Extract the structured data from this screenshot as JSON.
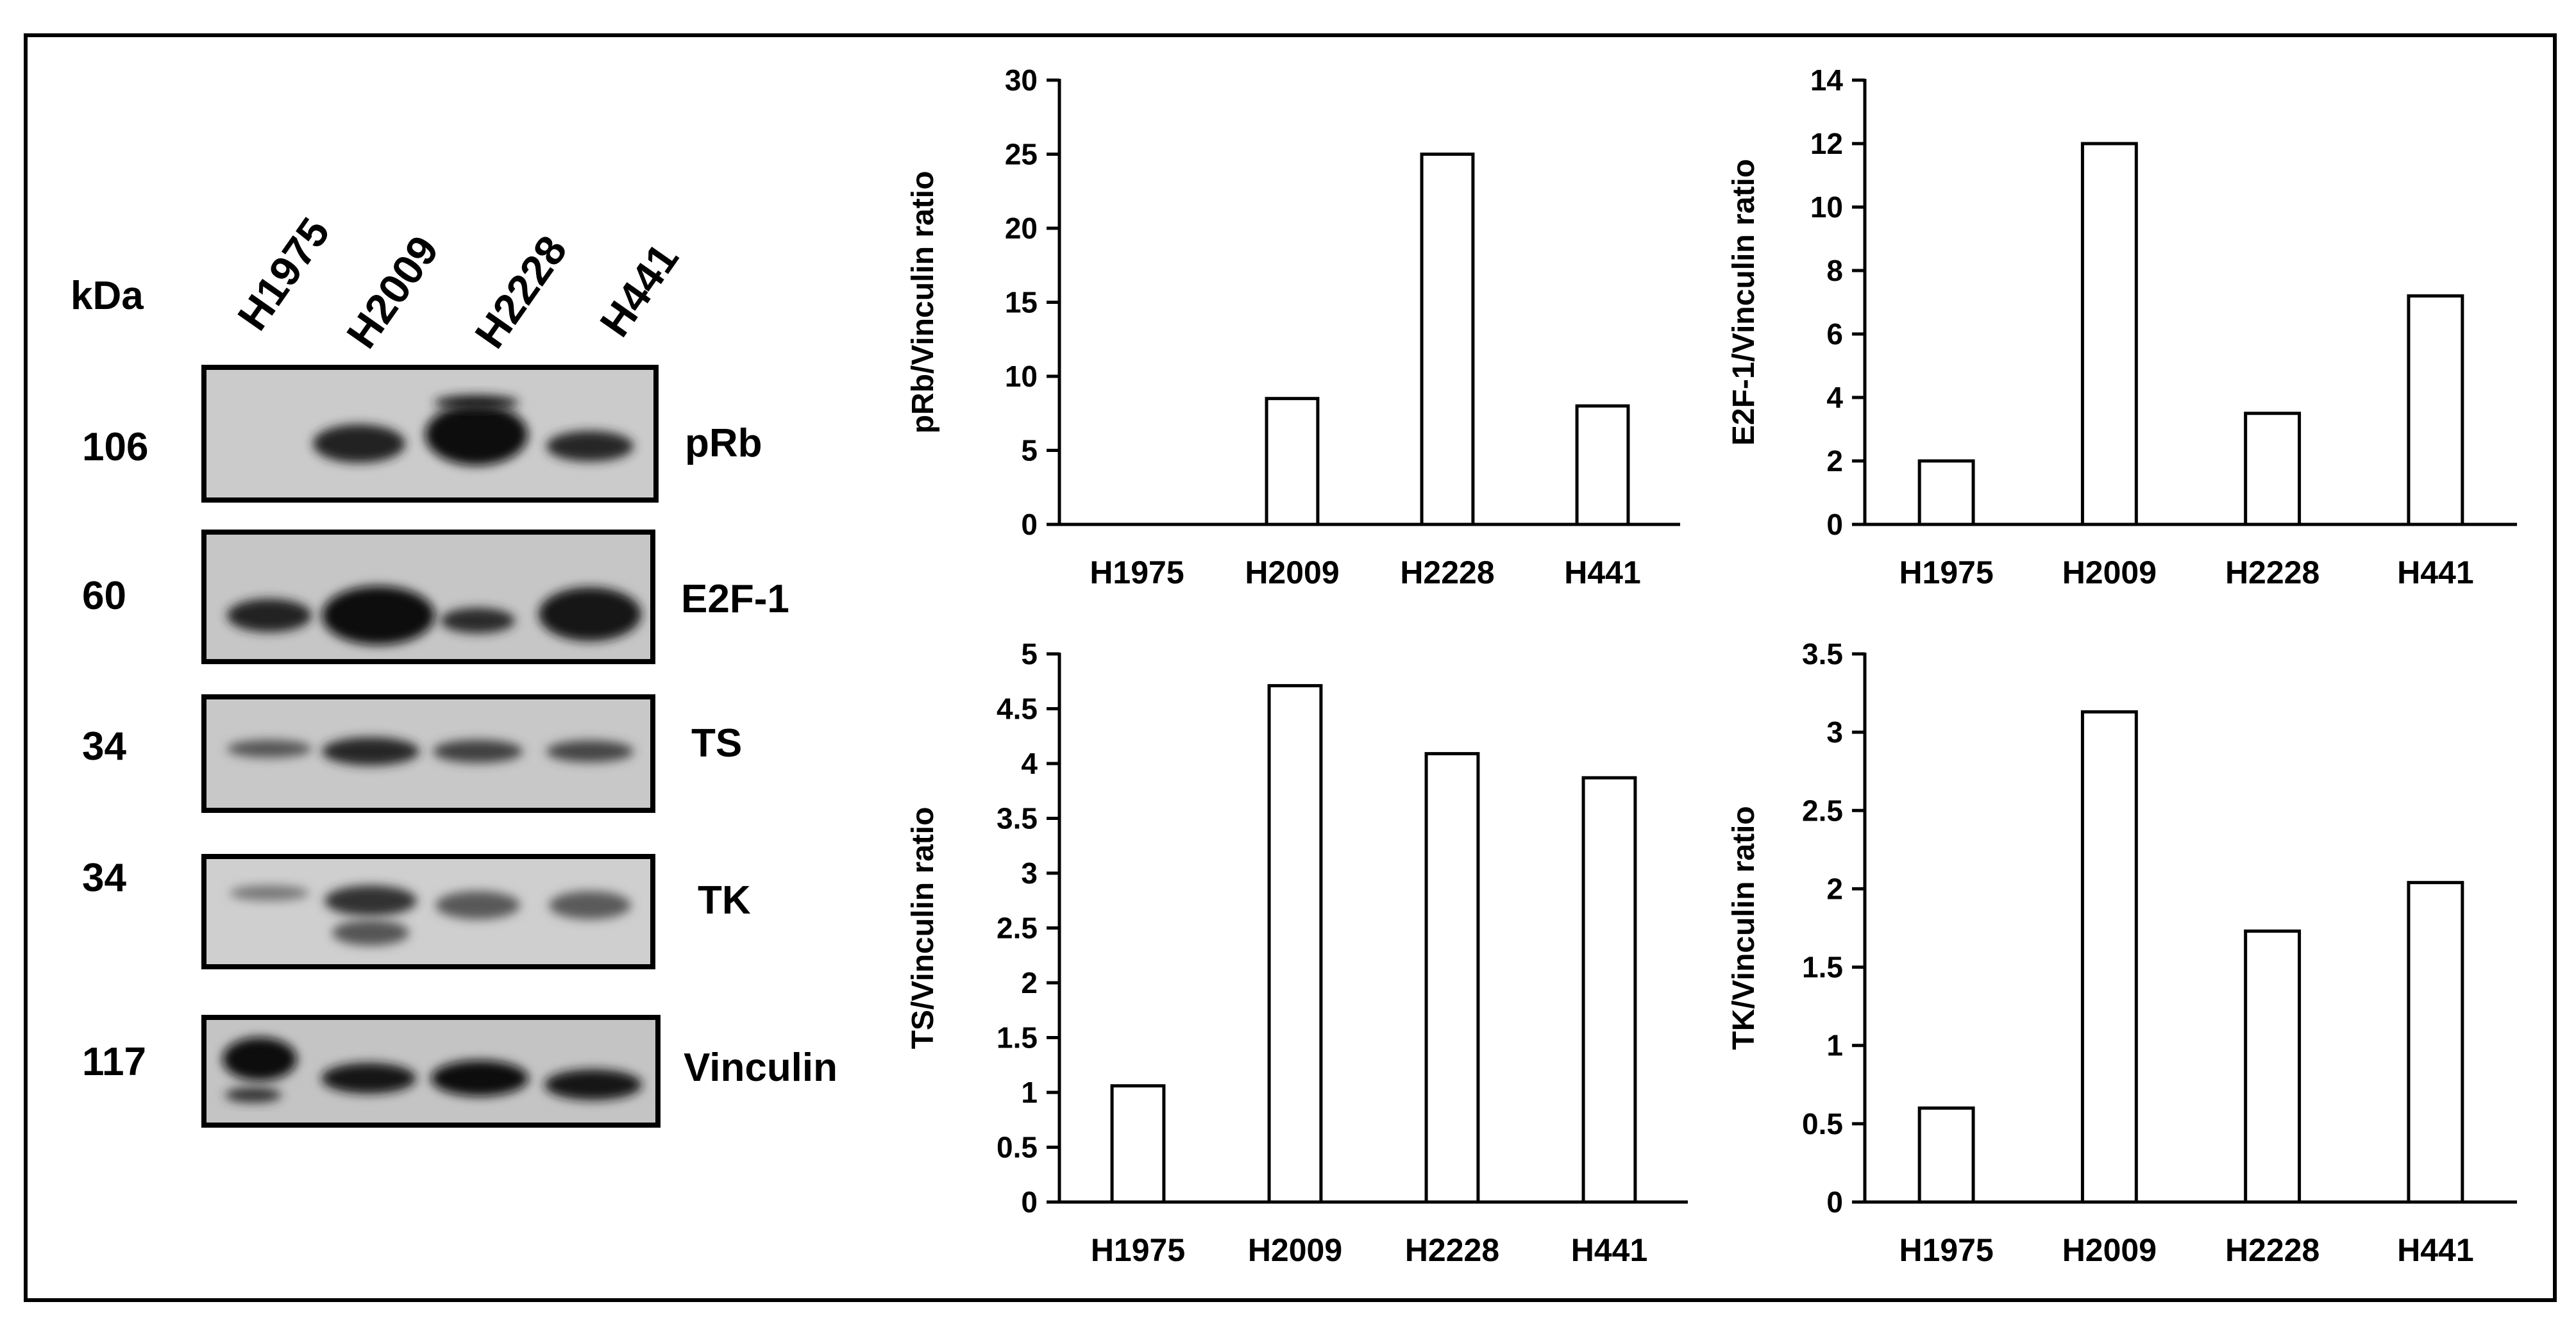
{
  "blot": {
    "unit_label": "kDa",
    "lanes": [
      "H1975",
      "H2009",
      "H2228",
      "H441"
    ],
    "rows": [
      {
        "kda": "106",
        "protein": "pRb"
      },
      {
        "kda": "60",
        "protein": "E2F-1"
      },
      {
        "kda": "34",
        "protein": "TS"
      },
      {
        "kda": "34",
        "protein": "TK"
      },
      {
        "kda": "117",
        "protein": "Vinculin"
      }
    ]
  },
  "chart_data": [
    {
      "type": "bar",
      "categories": [
        "H1975",
        "H2009",
        "H2228",
        "H441"
      ],
      "values": [
        0,
        8.5,
        25,
        8
      ],
      "ylabel": "pRb/Vinculin ratio",
      "xlabel": "",
      "ylim": [
        0,
        30
      ],
      "yticks": [
        0,
        5,
        10,
        15,
        20,
        25,
        30
      ]
    },
    {
      "type": "bar",
      "categories": [
        "H1975",
        "H2009",
        "H2228",
        "H441"
      ],
      "values": [
        2,
        12,
        3.5,
        7.2
      ],
      "ylabel": "E2F-1/Vinculin ratio",
      "xlabel": "",
      "ylim": [
        0,
        14
      ],
      "yticks": [
        0,
        2,
        4,
        6,
        8,
        10,
        12,
        14
      ]
    },
    {
      "type": "bar",
      "categories": [
        "H1975",
        "H2009",
        "H2228",
        "H441"
      ],
      "values": [
        1.06,
        4.71,
        4.09,
        3.87
      ],
      "ylabel": "TS/Vinculin ratio",
      "xlabel": "",
      "ylim": [
        0,
        5
      ],
      "yticks": [
        "0",
        "0.5",
        "1",
        "1.5",
        "2",
        "2.5",
        "3",
        "3.5",
        "4",
        "4.5",
        "5"
      ]
    },
    {
      "type": "bar",
      "categories": [
        "H1975",
        "H2009",
        "H2228",
        "H441"
      ],
      "values": [
        0.6,
        3.13,
        1.73,
        2.04
      ],
      "ylabel": "TK/Vinculin ratio",
      "xlabel": "",
      "ylim": [
        0,
        3.5
      ],
      "yticks": [
        "0",
        "0.5",
        "1",
        "1.5",
        "2",
        "2.5",
        "3",
        "3.5"
      ]
    }
  ]
}
